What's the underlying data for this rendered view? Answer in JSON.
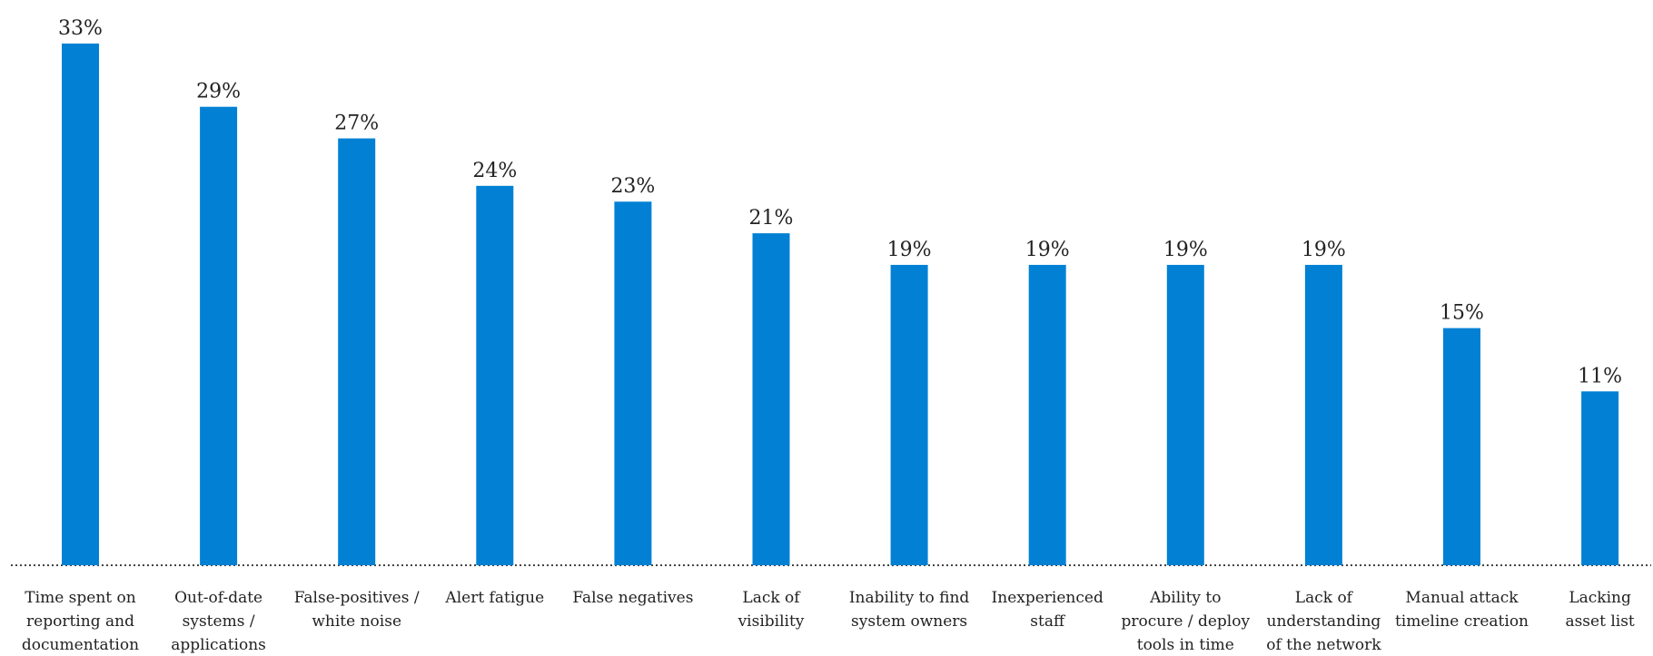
{
  "chart_data": {
    "type": "bar",
    "title": "",
    "xlabel": "",
    "ylabel": "",
    "ylim": [
      0,
      33
    ],
    "grid": false,
    "colors": {
      "bar": "#0281d4",
      "text": "#222222",
      "baseline": "#444444"
    },
    "categories": [
      [
        "Time spent on",
        "reporting and",
        "documentation"
      ],
      [
        "Out-of-date",
        "systems /",
        "applications"
      ],
      [
        "False-positives /",
        "white noise"
      ],
      [
        "Alert fatigue"
      ],
      [
        "False negatives"
      ],
      [
        "Lack of",
        "visibility"
      ],
      [
        "Inability to find",
        "system owners"
      ],
      [
        "Inexperienced",
        "staff"
      ],
      [
        "Ability to",
        "procure / deploy",
        "tools in time"
      ],
      [
        "Lack of",
        "understanding",
        "of the network"
      ],
      [
        "Manual attack",
        "timeline creation"
      ],
      [
        "Lacking",
        "asset list"
      ]
    ],
    "values": [
      33,
      29,
      27,
      24,
      23,
      21,
      19,
      19,
      19,
      19,
      15,
      11
    ],
    "value_labels": [
      "33%",
      "29%",
      "27%",
      "24%",
      "23%",
      "21%",
      "19%",
      "19%",
      "19%",
      "19%",
      "15%",
      "11%"
    ]
  }
}
